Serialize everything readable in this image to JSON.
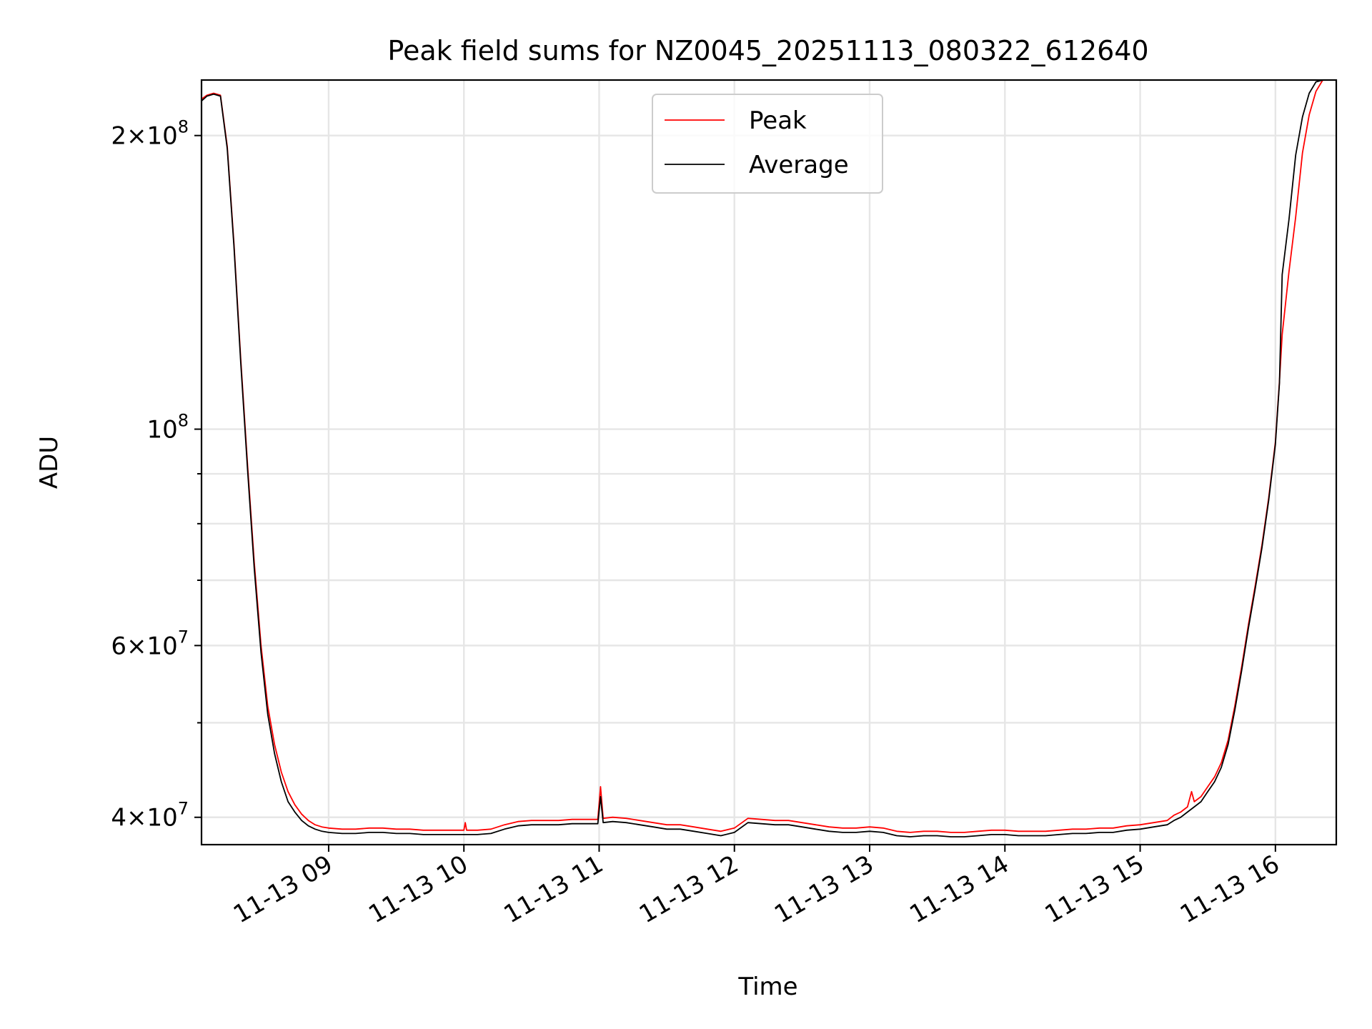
{
  "chart_data": {
    "type": "line",
    "title": "Peak field sums for NZ0045_20251113_080322_612640",
    "xlabel": "Time",
    "ylabel": "ADU",
    "yscale": "log",
    "xlim_hours": [
      8.06,
      16.45
    ],
    "ylim": [
      37500000,
      228000000
    ],
    "grid": true,
    "legend_position": "upper center",
    "x_ticks": [
      {
        "hour": 9,
        "label": "11-13 09"
      },
      {
        "hour": 10,
        "label": "11-13 10"
      },
      {
        "hour": 11,
        "label": "11-13 11"
      },
      {
        "hour": 12,
        "label": "11-13 12"
      },
      {
        "hour": 13,
        "label": "11-13 13"
      },
      {
        "hour": 14,
        "label": "11-13 14"
      },
      {
        "hour": 15,
        "label": "11-13 15"
      },
      {
        "hour": 16,
        "label": "11-13 16"
      }
    ],
    "y_ticks_major": [
      {
        "value": 40000000,
        "mantissa": "4",
        "exponent": "7"
      },
      {
        "value": 60000000,
        "mantissa": "6",
        "exponent": "7"
      },
      {
        "value": 100000000,
        "mantissa": "",
        "exponent": "8"
      },
      {
        "value": 200000000,
        "mantissa": "2",
        "exponent": "8"
      }
    ],
    "y_ticks_minor": [
      50000000,
      70000000,
      80000000,
      90000000
    ],
    "series": [
      {
        "name": "Peak",
        "color": "#ff0000",
        "x_hours": [
          8.06,
          8.1,
          8.15,
          8.2,
          8.25,
          8.3,
          8.35,
          8.4,
          8.45,
          8.5,
          8.55,
          8.6,
          8.65,
          8.7,
          8.75,
          8.8,
          8.85,
          8.9,
          8.95,
          9.0,
          9.1,
          9.2,
          9.3,
          9.4,
          9.5,
          9.6,
          9.7,
          9.8,
          9.9,
          10.0,
          10.01,
          10.02,
          10.1,
          10.2,
          10.3,
          10.4,
          10.5,
          10.6,
          10.7,
          10.8,
          10.9,
          10.99,
          11.01,
          11.03,
          11.1,
          11.2,
          11.3,
          11.4,
          11.5,
          11.6,
          11.7,
          11.8,
          11.9,
          12.0,
          12.1,
          12.2,
          12.3,
          12.4,
          12.5,
          12.6,
          12.7,
          12.8,
          12.9,
          13.0,
          13.1,
          13.2,
          13.3,
          13.4,
          13.5,
          13.6,
          13.7,
          13.8,
          13.9,
          14.0,
          14.1,
          14.2,
          14.3,
          14.4,
          14.5,
          14.6,
          14.7,
          14.8,
          14.9,
          15.0,
          15.1,
          15.2,
          15.25,
          15.3,
          15.35,
          15.38,
          15.4,
          15.45,
          15.5,
          15.55,
          15.6,
          15.65,
          15.7,
          15.75,
          15.8,
          15.85,
          15.9,
          15.95,
          16.0,
          16.03,
          16.05,
          16.1,
          16.15,
          16.2,
          16.25,
          16.3,
          16.35,
          16.4,
          16.45
        ],
        "values": [
          218000000,
          220000000,
          221000000,
          220000000,
          195000000,
          155000000,
          118000000,
          92000000,
          73000000,
          60000000,
          52000000,
          47500000,
          44500000,
          42500000,
          41200000,
          40300000,
          39700000,
          39300000,
          39100000,
          39000000,
          38900000,
          38900000,
          39000000,
          39000000,
          38900000,
          38900000,
          38800000,
          38800000,
          38800000,
          38800000,
          39500000,
          38800000,
          38800000,
          38900000,
          39300000,
          39600000,
          39700000,
          39700000,
          39700000,
          39800000,
          39800000,
          39800000,
          43000000,
          39900000,
          40000000,
          39900000,
          39700000,
          39500000,
          39300000,
          39300000,
          39100000,
          38900000,
          38700000,
          39000000,
          39900000,
          39800000,
          39700000,
          39700000,
          39500000,
          39300000,
          39100000,
          39000000,
          39000000,
          39100000,
          39000000,
          38700000,
          38600000,
          38700000,
          38700000,
          38600000,
          38600000,
          38700000,
          38800000,
          38800000,
          38700000,
          38700000,
          38700000,
          38800000,
          38900000,
          38900000,
          39000000,
          39000000,
          39200000,
          39300000,
          39500000,
          39700000,
          40200000,
          40500000,
          41000000,
          42500000,
          41500000,
          42000000,
          43000000,
          44000000,
          45500000,
          48000000,
          52000000,
          57000000,
          63000000,
          69000000,
          76000000,
          85000000,
          97000000,
          112000000,
          125000000,
          145000000,
          165000000,
          192000000,
          210000000,
          222000000,
          228000000,
          228000000,
          228000000
        ]
      },
      {
        "name": "Average",
        "color": "#000000",
        "x_hours": [
          8.06,
          8.1,
          8.15,
          8.2,
          8.25,
          8.3,
          8.35,
          8.4,
          8.45,
          8.5,
          8.55,
          8.6,
          8.65,
          8.7,
          8.75,
          8.8,
          8.85,
          8.9,
          8.95,
          9.0,
          9.1,
          9.2,
          9.3,
          9.4,
          9.5,
          9.6,
          9.7,
          9.8,
          9.9,
          10.0,
          10.1,
          10.2,
          10.3,
          10.4,
          10.5,
          10.6,
          10.7,
          10.8,
          10.9,
          10.99,
          11.01,
          11.03,
          11.1,
          11.2,
          11.3,
          11.4,
          11.5,
          11.6,
          11.7,
          11.8,
          11.9,
          12.0,
          12.1,
          12.2,
          12.3,
          12.4,
          12.5,
          12.6,
          12.7,
          12.8,
          12.9,
          13.0,
          13.1,
          13.2,
          13.3,
          13.4,
          13.5,
          13.6,
          13.7,
          13.8,
          13.9,
          14.0,
          14.1,
          14.2,
          14.3,
          14.4,
          14.5,
          14.6,
          14.7,
          14.8,
          14.9,
          15.0,
          15.1,
          15.2,
          15.25,
          15.3,
          15.35,
          15.4,
          15.45,
          15.5,
          15.55,
          15.6,
          15.65,
          15.7,
          15.75,
          15.8,
          15.85,
          15.9,
          15.95,
          16.0,
          16.03,
          16.05,
          16.1,
          16.15,
          16.2,
          16.25,
          16.3,
          16.35,
          16.4,
          16.45
        ],
        "values": [
          217000000,
          219500000,
          220500000,
          219500000,
          194000000,
          154000000,
          117000000,
          91000000,
          72000000,
          59000000,
          51000000,
          46500000,
          43500000,
          41500000,
          40500000,
          39700000,
          39200000,
          38900000,
          38700000,
          38600000,
          38500000,
          38500000,
          38600000,
          38600000,
          38500000,
          38500000,
          38400000,
          38400000,
          38400000,
          38400000,
          38400000,
          38500000,
          38900000,
          39200000,
          39300000,
          39300000,
          39300000,
          39400000,
          39400000,
          39400000,
          42000000,
          39500000,
          39600000,
          39500000,
          39300000,
          39100000,
          38900000,
          38900000,
          38700000,
          38500000,
          38300000,
          38600000,
          39500000,
          39400000,
          39300000,
          39300000,
          39100000,
          38900000,
          38700000,
          38600000,
          38600000,
          38700000,
          38600000,
          38300000,
          38200000,
          38300000,
          38300000,
          38200000,
          38200000,
          38300000,
          38400000,
          38400000,
          38300000,
          38300000,
          38300000,
          38400000,
          38500000,
          38500000,
          38600000,
          38600000,
          38800000,
          38900000,
          39100000,
          39300000,
          39700000,
          40000000,
          40500000,
          41000000,
          41500000,
          42500000,
          43500000,
          45000000,
          47500000,
          51500000,
          56500000,
          62500000,
          68500000,
          75500000,
          84500000,
          96500000,
          111500000,
          144000000,
          164000000,
          191000000,
          209000000,
          221000000,
          227000000,
          228000000,
          228000000,
          228000000
        ]
      }
    ]
  }
}
